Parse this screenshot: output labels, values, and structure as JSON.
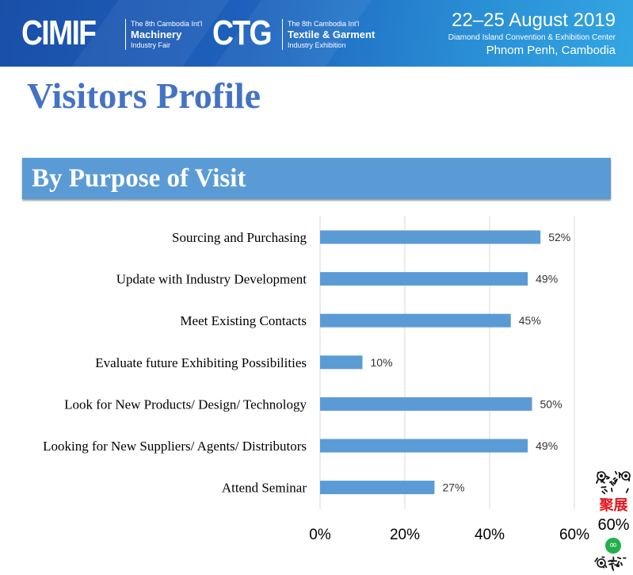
{
  "banner": {
    "logo1": "CIMIF",
    "logo1_sub1": "The 8th Cambodia Int'l",
    "logo1_sub2": "Machinery",
    "logo1_sub3": "Industry Fair",
    "logo2": "CTG",
    "logo2_sub1": "The 8th Cambodia Int'l",
    "logo2_sub2": "Textile & Garment",
    "logo2_sub3": "Industry Exhibition",
    "dates": "22–25 August 2019",
    "venue": "Diamond Island Convention & Exhibition Center",
    "city": "Phnom Penh, Cambodia"
  },
  "page_title": "Visitors Profile",
  "section_title": "By Purpose of Visit",
  "qr": {
    "brand": "聚展",
    "overlay_text": "60%"
  },
  "colors": {
    "bar": "#5b9bd5",
    "title": "#4472c4"
  },
  "chart_data": {
    "type": "bar",
    "orientation": "horizontal",
    "categories": [
      "Sourcing and Purchasing",
      "Update with Industry Development",
      "Meet Existing Contacts",
      "Evaluate future Exhibiting Possibilities",
      "Look for New Products/ Design/ Technology",
      "Looking for New Suppliers/ Agents/ Distributors",
      "Attend Seminar"
    ],
    "values": [
      52,
      49,
      45,
      10,
      50,
      49,
      27
    ],
    "value_labels": [
      "52%",
      "49%",
      "45%",
      "10%",
      "50%",
      "49%",
      "27%"
    ],
    "xticks": [
      "0%",
      "20%",
      "40%",
      "60%"
    ],
    "xlim": [
      0,
      60
    ],
    "grid": true
  }
}
